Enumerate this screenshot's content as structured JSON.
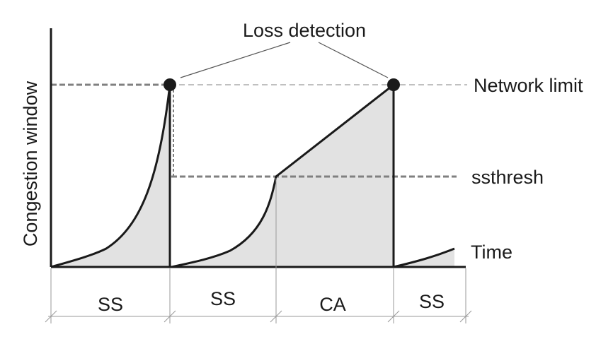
{
  "diagram": {
    "annotation": "Loss detection",
    "y_axis_label": "Congestion window",
    "network_limit_label": "Network limit",
    "ssthresh_label": "ssthresh",
    "x_axis_label": "Time",
    "phases": [
      "SS",
      "SS",
      "CA",
      "SS"
    ]
  },
  "colors": {
    "curve": "#1a1a1a",
    "fill": "#e2e2e2",
    "dashed_heavy": "#808080",
    "dashed_light": "#9a9a9a",
    "loss_marker": "#1a1a1a",
    "axis": "#1a1a1a",
    "background": "#ffffff"
  }
}
